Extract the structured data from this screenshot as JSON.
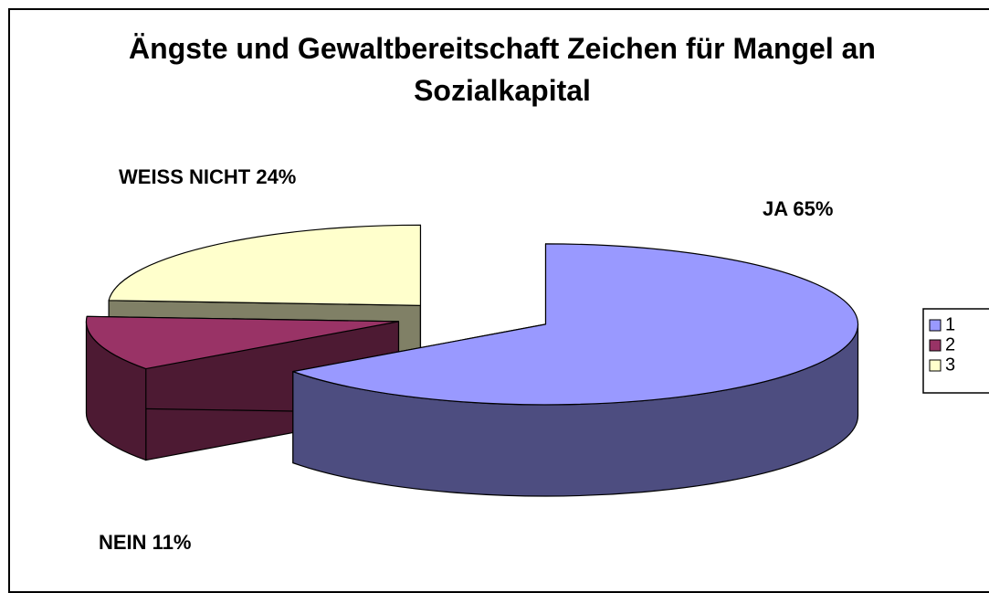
{
  "chart_data": {
    "type": "pie",
    "title": "Ängste und Gewaltbereitschaft Zeichen für Mangel an Sozialkapital",
    "categories": [
      "1",
      "2",
      "3"
    ],
    "values": [
      65,
      11,
      24
    ],
    "value_labels": [
      "JA 65%",
      "NEIN 11%",
      "WEISS NICHT 24%"
    ],
    "colors": [
      "#9999ff",
      "#993366",
      "#ffffcc"
    ],
    "legend": "right",
    "exploded": true,
    "three_d": true
  }
}
